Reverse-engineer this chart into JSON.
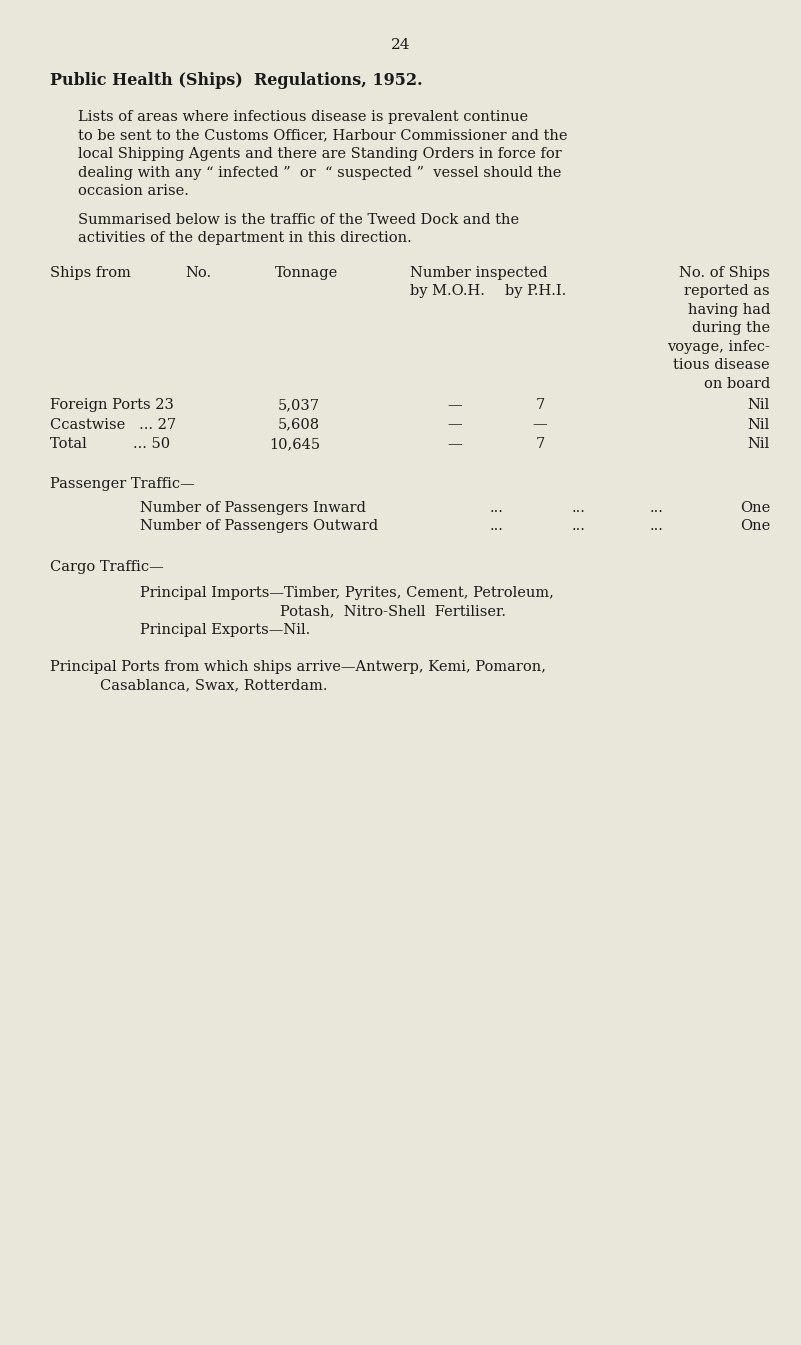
{
  "bg_color": "#e9e7da",
  "text_color": "#1a1a1a",
  "page_number": "24",
  "title": "Public Health (Ships)  Regulations, 1952.",
  "para1_lines": [
    "Lists of areas where infectious disease is prevalent continue",
    "to be sent to the Customs Officer, Harbour Commissioner and the",
    "local Shipping Agents and there are Standing Orders in force for",
    "dealing with any “ infected ”  or  “ suspected ”  vessel should the",
    "occasion arise."
  ],
  "para2_lines": [
    "Summarised below is the traffic of the Tweed Dock and the",
    "activities of the department in this direction."
  ],
  "passenger_header": "Passenger Traffic—",
  "passenger_inward_label": "Number of Passengers Inward",
  "passenger_inward_dots": "...",
  "passenger_inward_val": "One",
  "passenger_outward_label": "Number of Passengers Outward",
  "passenger_outward_dots": "...",
  "passenger_outward_val": "One",
  "cargo_header": "Cargo Traffic—",
  "cargo_imports_line1": "Principal Imports—Timber, Pyrites, Cement, Petroleum,",
  "cargo_imports_line2": "Potash,  Nitro-Shell  Fertiliser.",
  "cargo_exports": "Principal Exports—Nil.",
  "ports_line1": "Principal Ports from which ships arrive—Antwerp, Kemi, Pomaron,",
  "ports_line2": "Casablanca, Swax, Rotterdam.",
  "row1_label": "Foreign Ports 23",
  "row1_tonnage": "5,037",
  "row1_moh": "—",
  "row1_phi": "7",
  "row1_ships": "Nil",
  "row2_label": "Ccastwise   ... 27",
  "row2_tonnage": "5,608",
  "row2_moh": "—",
  "row2_phi": "—",
  "row2_ships": "Nil",
  "row3_label": "Total          ... 50",
  "row3_tonnage": "10,645",
  "row3_moh": "—",
  "row3_phi": "7",
  "row3_ships": "Nil"
}
